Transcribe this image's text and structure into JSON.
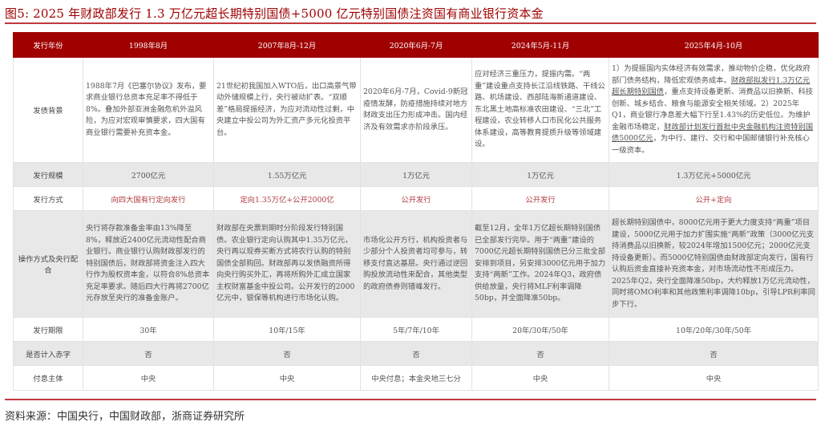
{
  "title": "图5:  2025 年财政部发行 1.3 万亿元超长期特别国债+5000 亿元特别国债注资国有商业银行资本金",
  "colors": {
    "header_bg": "#a00000",
    "accent_text": "#b03a3e",
    "rule": "#c0393f",
    "stripe": "#e8e8e8"
  },
  "table": {
    "header": [
      "发行年份",
      "1998年8月",
      "2007年8月-12月",
      "2020年6月-7月",
      "2024年5月-11月",
      "2025年4月-10月"
    ],
    "background": {
      "label": "发债背景",
      "c1": "1988年7月《巴塞尔协议》发布，要求商业银行总资本充足率不得低于8%。叠加外部亚洲金融危机外溢风险，为应对宏观审慎要求，四大国有商业银行需要补充资本金。",
      "c2": "21世纪初我国加入WTO后，出口高景气带动外储规模上行，央行被动扩表。“双顺差”格局提振经济，为应对流动性过剩，中央建立中投公司为外汇资产多元化投资平台。",
      "c3": "2020年6月-7月，Covid-9新冠疫情发酵，防疫措施持续对地方财政支出压力形成冲击。国内经济及有效需求亦阶段承压。",
      "c4": "应对经济三重压力，提振内需。“两重”建设重点支持长江沿线铁路、干线公路、机场建设、西部陆海新通道建设、东北黑土地高标准农田建设、“三北”工程建设，农业转移人口市民化公共服务体系建设，高等教育提质升级等领域建设。",
      "c5_a": "1）为提振国内实体经济有效需求，推动物价企稳，优化政府部门债务结构，降低宏观债务成本。",
      "c5_u1": "财政部拟发行1.3万亿元超长期特别国债",
      "c5_b": "，重点支持设备更新、消费品以旧换新、科技创新、城乡结合、粮食与能源安全相关领域。2）2025年Q1，商业银行净息差大幅下行至1.43%的历史低位。为维护金融市场稳定，",
      "c5_u2": "财政部计划发行首批中央金融机构注资特别国债5000亿元",
      "c5_c": "，为中行、建行、交行和中国邮储银行补充核心一级资本。"
    },
    "scale": {
      "label": "发行规模",
      "values": [
        "2700亿元",
        "1.55万亿元",
        "1万亿元",
        "1万亿元",
        "1.3万亿元+5000亿元"
      ]
    },
    "method": {
      "label": "发行方式",
      "values": [
        "向四大国有行定向发行",
        "定向1.35万亿+公开2000亿",
        "公开发行",
        "公开发行",
        "公开+定向"
      ]
    },
    "operation": {
      "label": "操作方式及央行配合",
      "values": [
        "央行将存款准备金率由13%降至8%，释放近2400亿元流动性配合商业银行。商业银行认购财政部发行的特别国债后，财政部将资金注入四大行作为股权资本金，以符合8%总资本充足率要求。随后四大行再将2700亿元存放至央行的准备金账户。",
        "财政部在央票到期时分阶段发行特别国债。农业银行定向认购其中1.35万亿元，央行再以现券买断方式将农行认购的特别国债全部购回。财政部再以发债融资所得向央行购买外汇，再将所购外汇成立国家主权财富基金中投公司。公开发行的2000亿元中，银保等机构进行市场化认购。",
        "市场化公开方行，机构投资者与少部分个人投资者均可参与，转移支付直达基层。央行通过逆回购投放流动性来配合，其他类型的政府债券则错峰发行。",
        "截至12月，全年1万亿超长期特别国债已全部发行完毕。用于“两重”建设的7000亿元超长期特别国债已分三批全部安排到项目，另安排3000亿元用于加力支持“两新”工作。2024年Q3，政府债供给放量，央行将MLF利率调降50bp，并全面降准50bp。",
        "超长期特别国债中，8000亿元用于更大力度支持“两重”项目建设，5000亿元用于加力扩围实施“两新”政策（3000亿元支持消费品以旧换新，较2024年增加1500亿元；2000亿元支持设备更新）。而5000亿特别国债由财政部定向发行，国有行认购后资金直接补充资本金，对市场流动性不形成压力。2025年Q2，央行全面降准50bp，大约释放1万亿元流动性，同时将OMO利率和其他政策利率调降10bp，引导LPR利率同步下行。"
      ]
    },
    "term": {
      "label": "发行期限",
      "values": [
        "30年",
        "10年/15年",
        "5年/7年/10年",
        "20年/30年/50年",
        "10年/20年/30年/50年"
      ]
    },
    "deficit": {
      "label": "是否计入赤字",
      "values": [
        "否",
        "否",
        "否",
        "否",
        "否"
      ]
    },
    "interest": {
      "label": "付息主体",
      "values": [
        "中央",
        "中央",
        "中央付息；本金央地三七分",
        "中央",
        "中央"
      ]
    }
  },
  "source": "资料来源：中国央行，中国财政部，浙商证券研究所"
}
